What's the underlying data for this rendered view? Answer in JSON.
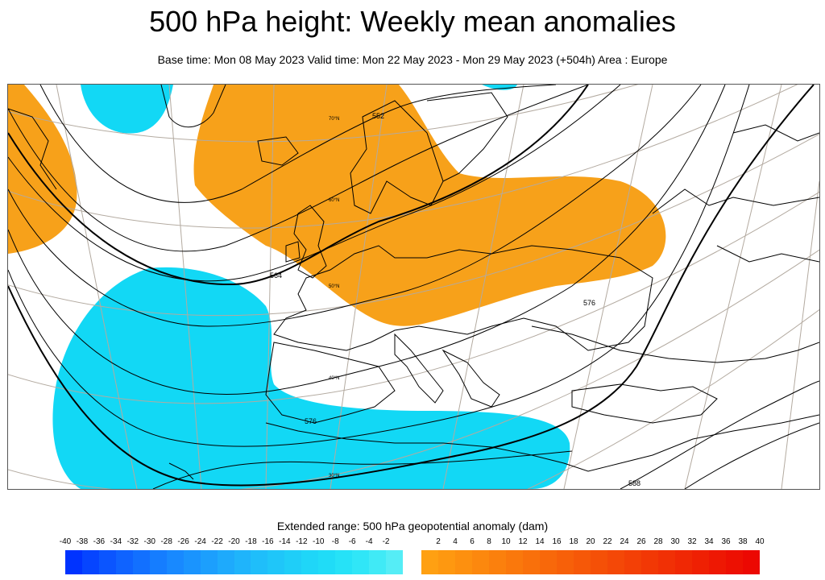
{
  "header": {
    "title": "500 hPa height: Weekly mean anomalies",
    "subtitle": "Base time: Mon 08 May 2023 Valid time: Mon 22 May 2023 - Mon 29 May 2023 (+504h) Area : Europe"
  },
  "map": {
    "colors": {
      "positive_anomaly": "#f7a11a",
      "negative_anomaly": "#12d8f5",
      "contour": "#000000",
      "graticule": "#b3aaa0",
      "coast": "#000000"
    },
    "contour_labels": [
      "552",
      "564",
      "576",
      "588",
      "576"
    ],
    "latitude_labels": [
      "70°N",
      "60°N",
      "50°N",
      "40°N",
      "30°N"
    ]
  },
  "colorbar": {
    "title": "Extended range: 500 hPa geopotential anomaly (dam)",
    "negative_ticks": [
      "-40",
      "-38",
      "-36",
      "-34",
      "-32",
      "-30",
      "-28",
      "-26",
      "-24",
      "-22",
      "-20",
      "-18",
      "-16",
      "-14",
      "-12",
      "-10",
      "-8",
      "-6",
      "-4",
      "-2"
    ],
    "positive_ticks": [
      "2",
      "4",
      "6",
      "8",
      "10",
      "12",
      "14",
      "16",
      "18",
      "20",
      "22",
      "24",
      "26",
      "28",
      "30",
      "32",
      "34",
      "36",
      "38",
      "40"
    ],
    "negative_colors": [
      "#0033ff",
      "#0645ff",
      "#0b55ff",
      "#0f63ff",
      "#1270ff",
      "#157dff",
      "#1889ff",
      "#1a94fe",
      "#1c9ffd",
      "#1eaafc",
      "#1fb4fb",
      "#1fbefa",
      "#1fc6f9",
      "#1fcef8",
      "#1fd6f8",
      "#20dcf7",
      "#26e2f7",
      "#30e6f7",
      "#40eaf6",
      "#55edf6"
    ],
    "positive_colors": [
      "#ffa012",
      "#fe9810",
      "#fd900f",
      "#fc880e",
      "#fb800d",
      "#fa780c",
      "#f9700b",
      "#f8680a",
      "#f76009",
      "#f65808",
      "#f55007",
      "#f44807",
      "#f34006",
      "#f23805",
      "#f13005",
      "#f02804",
      "#ef2003",
      "#ee1803",
      "#ed1002",
      "#ec0802"
    ]
  }
}
